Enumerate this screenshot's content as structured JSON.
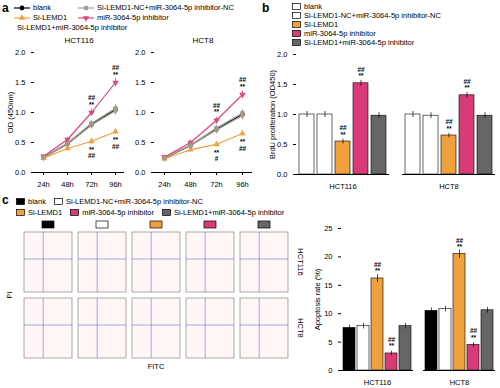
{
  "chart_data": [
    {
      "panel": "a",
      "type": "line",
      "titles": [
        "HCT116",
        "HCT8"
      ],
      "categories": [
        "24h",
        "48h",
        "72h",
        "96h"
      ],
      "ylabel": "OD (450nm)",
      "ylim": [
        0,
        2
      ],
      "yticks": [
        {
          "value": 0,
          "label": "0.0"
        },
        0.5,
        {
          "value": 1,
          "label": "1.0"
        },
        1.5,
        {
          "value": 2,
          "label": "2.0"
        }
      ],
      "series": [
        {
          "name": "blank",
          "color": "#000000",
          "marker": "circle",
          "values": [
            [
              0.25,
              0.48,
              0.8,
              1.05
            ],
            [
              0.24,
              0.45,
              0.72,
              0.97
            ]
          ],
          "errors": [
            [
              0.03,
              0.04,
              0.05,
              0.06
            ],
            [
              0.03,
              0.04,
              0.05,
              0.06
            ]
          ],
          "annotations": [
            [
              null,
              null,
              null,
              null
            ],
            [
              null,
              null,
              null,
              null
            ]
          ]
        },
        {
          "name": "Si-LEMD1-NC+miR-3064-5p inhibitor-NC",
          "color": "#9e9e9e",
          "marker": "square",
          "values": [
            [
              0.26,
              0.49,
              0.82,
              1.07
            ],
            [
              0.25,
              0.46,
              0.74,
              0.99
            ]
          ],
          "errors": [
            [
              0.03,
              0.04,
              0.05,
              0.06
            ],
            [
              0.03,
              0.04,
              0.05,
              0.06
            ]
          ],
          "annotations": [
            [
              null,
              null,
              null,
              null
            ],
            [
              null,
              null,
              null,
              null
            ]
          ]
        },
        {
          "name": "Si-LEMD1",
          "color": "#f0a03c",
          "marker": "triangle",
          "values": [
            [
              0.24,
              0.4,
              0.52,
              0.68
            ],
            [
              0.23,
              0.38,
              0.47,
              0.65
            ]
          ],
          "errors": [
            [
              0.03,
              0.04,
              0.05,
              0.05
            ],
            [
              0.03,
              0.04,
              0.04,
              0.05
            ]
          ],
          "annotations": [
            [
              null,
              null,
              "**\n##",
              "**\n##"
            ],
            [
              null,
              null,
              "**\n#",
              "**\n##"
            ]
          ]
        },
        {
          "name": "miR-3064-5p inhibitor",
          "color": "#e0457b",
          "marker": "triangle-down",
          "values": [
            [
              0.27,
              0.55,
              1.0,
              1.5
            ],
            [
              0.26,
              0.5,
              0.87,
              1.3
            ]
          ],
          "errors": [
            [
              0.03,
              0.04,
              0.06,
              0.07
            ],
            [
              0.03,
              0.04,
              0.05,
              0.06
            ]
          ],
          "annotations": [
            [
              null,
              null,
              "##\n**",
              "##\n**"
            ],
            [
              null,
              null,
              "##\n**",
              "##\n**"
            ]
          ]
        },
        {
          "name": "Si-LEMD1+miR-3064-5p inhibitor",
          "color": "#a89a86",
          "marker": "diamond",
          "values": [
            [
              0.25,
              0.47,
              0.79,
              1.03
            ],
            [
              0.24,
              0.45,
              0.71,
              0.95
            ]
          ],
          "errors": [
            [
              0.03,
              0.04,
              0.05,
              0.06
            ],
            [
              0.03,
              0.04,
              0.05,
              0.06
            ]
          ],
          "annotations": [
            [
              null,
              null,
              null,
              null
            ],
            [
              null,
              null,
              null,
              null
            ]
          ]
        }
      ]
    },
    {
      "panel": "b",
      "type": "bar",
      "categories": [
        "HCT116",
        "HCT8"
      ],
      "ylabel": "BrdU proliferation (OD450)",
      "ylim": [
        0,
        2
      ],
      "yticks": [
        {
          "value": 0,
          "label": "0.0"
        },
        0.5,
        {
          "value": 1,
          "label": "1.0"
        },
        1.5,
        {
          "value": 2,
          "label": "2.0"
        }
      ],
      "series": [
        {
          "name": "blank",
          "color": "#ffffff",
          "values": [
            1.0,
            1.0
          ],
          "errors": [
            0.05,
            0.05
          ],
          "annotations": [
            null,
            null
          ]
        },
        {
          "name": "Si-LEMD1-NC+miR-3064-5p inhibitor-NC",
          "color": "#ffffff",
          "values": [
            1.0,
            0.98
          ],
          "errors": [
            0.05,
            0.05
          ],
          "annotations": [
            null,
            null
          ]
        },
        {
          "name": "Si-LEMD1",
          "color": "#f0a03c",
          "values": [
            0.55,
            0.65
          ],
          "errors": [
            0.04,
            0.04
          ],
          "annotations": [
            "##\n**",
            "##\n**"
          ]
        },
        {
          "name": "miR-3064-5p inhibitor",
          "color": "#d93a78",
          "values": [
            1.52,
            1.32
          ],
          "errors": [
            0.05,
            0.05
          ],
          "annotations": [
            "##\n**",
            "##\n**"
          ]
        },
        {
          "name": "Si-LEMD1+miR-3064-5p inhibitor",
          "color": "#666666",
          "values": [
            0.98,
            0.98
          ],
          "errors": [
            0.05,
            0.05
          ],
          "annotations": [
            null,
            null
          ]
        }
      ]
    },
    {
      "panel": "c",
      "type": "bar",
      "categories": [
        "HCT116",
        "HCT8"
      ],
      "ylabel": "Apoptosis rate (%)",
      "ylim": [
        0,
        25
      ],
      "yticks": [
        0,
        5,
        10,
        15,
        20,
        25
      ],
      "series": [
        {
          "name": "blank",
          "color": "#000000",
          "values": [
            7.5,
            10.5
          ],
          "errors": [
            0.5,
            0.5
          ],
          "annotations": [
            null,
            null
          ]
        },
        {
          "name": "Si-LEMD1-NC+miR-3064-5p inhibitor-NC",
          "color": "#ffffff",
          "values": [
            7.8,
            10.8
          ],
          "errors": [
            0.5,
            0.5
          ],
          "annotations": [
            null,
            null
          ]
        },
        {
          "name": "Si-LEMD1",
          "color": "#f0a03c",
          "values": [
            16.2,
            20.5
          ],
          "errors": [
            0.7,
            0.7
          ],
          "annotations": [
            "##\n**",
            "##\n**"
          ]
        },
        {
          "name": "miR-3064-5p inhibitor",
          "color": "#d93a78",
          "values": [
            3.0,
            4.5
          ],
          "errors": [
            0.4,
            0.4
          ],
          "annotations": [
            "##\n**",
            "##\n**"
          ]
        },
        {
          "name": "Si-LEMD1+miR-3064-5p inhibitor",
          "color": "#666666",
          "values": [
            7.8,
            10.6
          ],
          "errors": [
            0.5,
            0.5
          ],
          "annotations": [
            null,
            null
          ]
        }
      ]
    }
  ],
  "flow_cytometry": {
    "rows": [
      "HCT116",
      "HCT8"
    ],
    "xlabel": "FITC",
    "ylabel": "PI"
  }
}
